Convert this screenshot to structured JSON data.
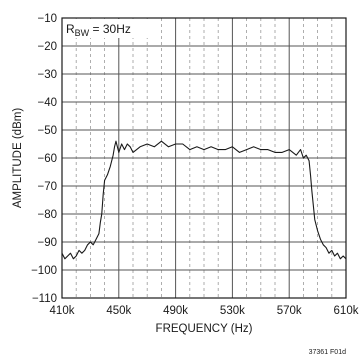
{
  "chart_data": {
    "type": "line",
    "title": "",
    "xlabel": "FREQUENCY (Hz)",
    "ylabel": "AMPLITUDE (dBm)",
    "xlim": [
      410,
      610
    ],
    "ylim": [
      -110,
      -10
    ],
    "x_ticks": [
      410,
      450,
      490,
      530,
      570,
      610
    ],
    "x_tick_labels": [
      "410k",
      "450k",
      "490k",
      "530k",
      "570k",
      "610k"
    ],
    "x_minor_step": 10,
    "y_ticks": [
      -110,
      -100,
      -90,
      -80,
      -70,
      -60,
      -50,
      -40,
      -30,
      -20,
      -10
    ],
    "y_tick_labels": [
      "−110",
      "−100",
      "−90",
      "−80",
      "−70",
      "−60",
      "−50",
      "−40",
      "−30",
      "−20",
      "−10"
    ],
    "grid": true,
    "annotation": {
      "prefix": "R",
      "subscript": "BW",
      "suffix": " = 30Hz"
    },
    "figure_id": "37361 F01d",
    "series": [
      {
        "x": [
          410,
          412,
          414,
          416,
          418,
          420,
          422,
          424,
          426,
          428,
          430,
          432,
          434,
          436,
          437,
          438,
          439,
          440,
          442,
          444,
          446,
          447,
          448,
          450,
          452,
          454,
          456,
          458,
          460,
          465,
          470,
          475,
          480,
          485,
          490,
          495,
          500,
          505,
          510,
          515,
          520,
          525,
          530,
          535,
          540,
          545,
          550,
          555,
          560,
          565,
          570,
          575,
          578,
          580,
          582,
          584,
          585,
          586,
          588,
          590,
          592,
          594,
          596,
          598,
          600,
          602,
          604,
          606,
          608,
          610
        ],
        "y": [
          -94,
          -96,
          -95,
          -94,
          -96,
          -95,
          -93,
          -94,
          -93,
          -91,
          -90,
          -91,
          -89,
          -87,
          -83,
          -80,
          -73,
          -68,
          -66,
          -63,
          -59,
          -56,
          -54,
          -58,
          -55,
          -57,
          -55,
          -56,
          -58,
          -56,
          -55,
          -56,
          -54,
          -56,
          -55,
          -55,
          -57,
          -56,
          -57,
          -56,
          -57,
          -57,
          -56,
          -58,
          -57,
          -56,
          -57,
          -57,
          -58,
          -58,
          -57,
          -59,
          -57,
          -60,
          -59,
          -61,
          -66,
          -72,
          -82,
          -86,
          -89,
          -91,
          -92,
          -94,
          -93,
          -95,
          -94,
          -96,
          -95,
          -96
        ]
      }
    ]
  }
}
